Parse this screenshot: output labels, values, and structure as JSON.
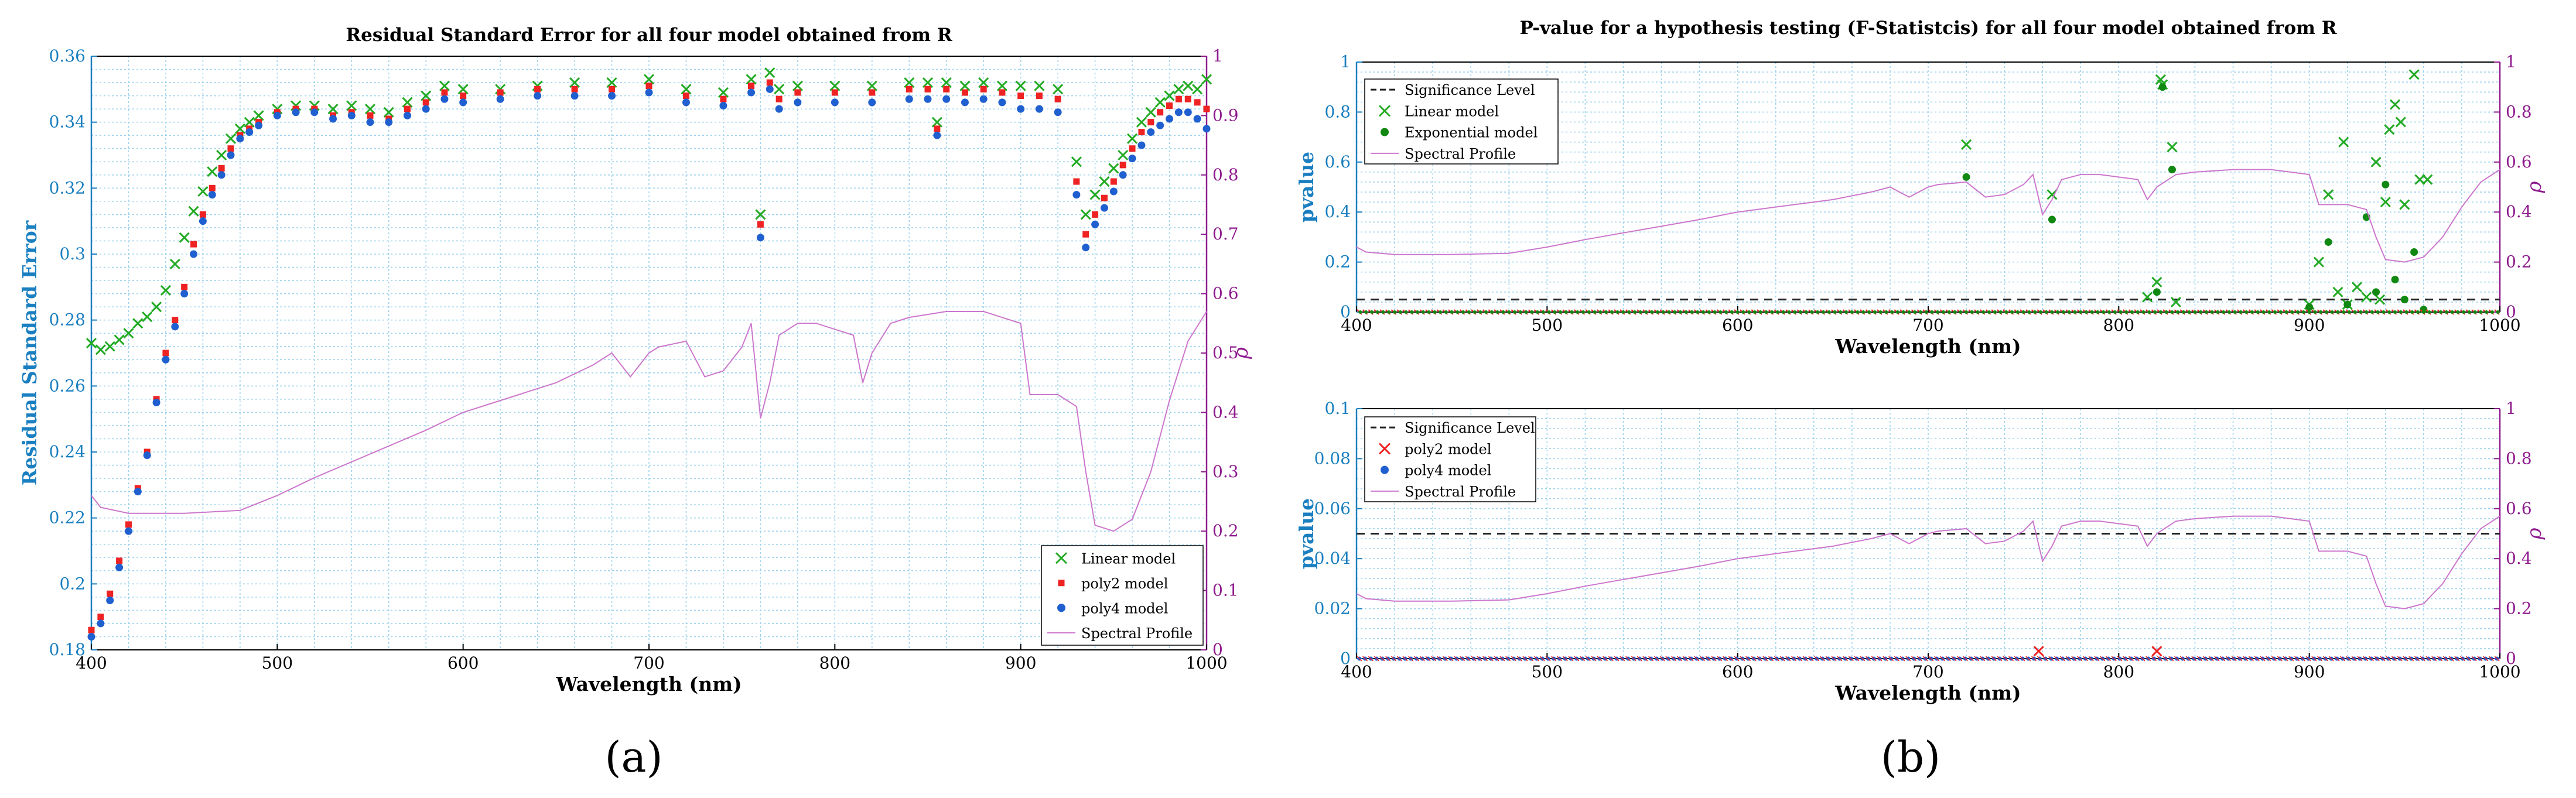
{
  "panel_labels": [
    "(a)",
    "(b)"
  ],
  "colors": {
    "linear": "#22aa22",
    "poly2": "#ee2222",
    "poly4": "#1f5fd0",
    "exponential": "#118811",
    "spectral": "#cc77cc",
    "significance": "#222222",
    "left_axis": "#1a7fc0",
    "right_axis": "#8e1a8e",
    "grid": "#9ed3ee"
  },
  "chart_data": [
    {
      "type": "scatter",
      "title": "Residual Standard Error for all four model obtained from R",
      "xlabel": "Wavelength (nm)",
      "ylabel": "Residual Standard Error",
      "ylabel_right": "ρ",
      "xlim": [
        400,
        1000
      ],
      "ylim": [
        0.18,
        0.36
      ],
      "ylim_right": [
        0,
        1
      ],
      "xticks": [
        400,
        500,
        600,
        700,
        800,
        900,
        1000
      ],
      "yticks": [
        0.18,
        0.2,
        0.22,
        0.24,
        0.26,
        0.28,
        0.3,
        0.32,
        0.34,
        0.36
      ],
      "yticks_right": [
        0,
        0.1,
        0.2,
        0.3,
        0.4,
        0.5,
        0.6,
        0.7,
        0.8,
        0.9,
        1
      ],
      "grid": true,
      "legend_position": "bottom-right",
      "series": [
        {
          "name": "Linear model",
          "marker": "x",
          "axis": "left",
          "x": [
            400,
            405,
            410,
            415,
            420,
            425,
            430,
            435,
            440,
            445,
            450,
            455,
            460,
            465,
            470,
            475,
            480,
            485,
            490,
            500,
            510,
            520,
            530,
            540,
            550,
            560,
            570,
            580,
            590,
            600,
            620,
            640,
            660,
            680,
            700,
            720,
            740,
            755,
            760,
            765,
            770,
            780,
            800,
            820,
            840,
            850,
            855,
            860,
            870,
            880,
            890,
            900,
            910,
            920,
            930,
            935,
            940,
            945,
            950,
            955,
            960,
            965,
            970,
            975,
            980,
            985,
            990,
            995,
            1000
          ],
          "y": [
            0.273,
            0.271,
            0.272,
            0.274,
            0.276,
            0.279,
            0.281,
            0.284,
            0.289,
            0.297,
            0.305,
            0.313,
            0.319,
            0.325,
            0.33,
            0.335,
            0.338,
            0.34,
            0.342,
            0.344,
            0.345,
            0.345,
            0.344,
            0.345,
            0.344,
            0.343,
            0.346,
            0.348,
            0.351,
            0.35,
            0.35,
            0.351,
            0.352,
            0.352,
            0.353,
            0.35,
            0.349,
            0.353,
            0.312,
            0.355,
            0.35,
            0.351,
            0.351,
            0.351,
            0.352,
            0.352,
            0.34,
            0.352,
            0.351,
            0.352,
            0.351,
            0.351,
            0.351,
            0.35,
            0.328,
            0.312,
            0.318,
            0.322,
            0.326,
            0.33,
            0.335,
            0.34,
            0.343,
            0.346,
            0.348,
            0.35,
            0.351,
            0.35,
            0.353
          ]
        },
        {
          "name": "poly2 model",
          "marker": "square",
          "axis": "left",
          "x": [
            400,
            405,
            410,
            415,
            420,
            425,
            430,
            435,
            440,
            445,
            450,
            455,
            460,
            465,
            470,
            475,
            480,
            485,
            490,
            500,
            510,
            520,
            530,
            540,
            550,
            560,
            570,
            580,
            590,
            600,
            620,
            640,
            660,
            680,
            700,
            720,
            740,
            755,
            760,
            765,
            770,
            780,
            800,
            820,
            840,
            850,
            855,
            860,
            870,
            880,
            890,
            900,
            910,
            920,
            930,
            935,
            940,
            945,
            950,
            955,
            960,
            965,
            970,
            975,
            980,
            985,
            990,
            995,
            1000
          ],
          "y": [
            0.186,
            0.19,
            0.197,
            0.207,
            0.218,
            0.229,
            0.24,
            0.256,
            0.27,
            0.28,
            0.29,
            0.303,
            0.312,
            0.32,
            0.326,
            0.332,
            0.336,
            0.338,
            0.34,
            0.343,
            0.344,
            0.344,
            0.342,
            0.343,
            0.342,
            0.341,
            0.344,
            0.346,
            0.349,
            0.348,
            0.349,
            0.35,
            0.35,
            0.35,
            0.351,
            0.348,
            0.347,
            0.351,
            0.309,
            0.352,
            0.347,
            0.349,
            0.349,
            0.349,
            0.35,
            0.35,
            0.338,
            0.35,
            0.349,
            0.35,
            0.349,
            0.348,
            0.348,
            0.347,
            0.322,
            0.306,
            0.312,
            0.317,
            0.322,
            0.327,
            0.332,
            0.337,
            0.34,
            0.343,
            0.345,
            0.347,
            0.347,
            0.346,
            0.344
          ]
        },
        {
          "name": "poly4 model",
          "marker": "dot",
          "axis": "left",
          "x": [
            400,
            405,
            410,
            415,
            420,
            425,
            430,
            435,
            440,
            445,
            450,
            455,
            460,
            465,
            470,
            475,
            480,
            485,
            490,
            500,
            510,
            520,
            530,
            540,
            550,
            560,
            570,
            580,
            590,
            600,
            620,
            640,
            660,
            680,
            700,
            720,
            740,
            755,
            760,
            765,
            770,
            780,
            800,
            820,
            840,
            850,
            855,
            860,
            870,
            880,
            890,
            900,
            910,
            920,
            930,
            935,
            940,
            945,
            950,
            955,
            960,
            965,
            970,
            975,
            980,
            985,
            990,
            995,
            1000
          ],
          "y": [
            0.184,
            0.188,
            0.195,
            0.205,
            0.216,
            0.228,
            0.239,
            0.255,
            0.268,
            0.278,
            0.288,
            0.3,
            0.31,
            0.318,
            0.324,
            0.33,
            0.335,
            0.337,
            0.339,
            0.342,
            0.343,
            0.343,
            0.341,
            0.342,
            0.34,
            0.34,
            0.342,
            0.344,
            0.347,
            0.346,
            0.347,
            0.348,
            0.348,
            0.348,
            0.349,
            0.346,
            0.345,
            0.349,
            0.305,
            0.35,
            0.344,
            0.346,
            0.346,
            0.346,
            0.347,
            0.347,
            0.336,
            0.347,
            0.346,
            0.347,
            0.346,
            0.344,
            0.344,
            0.343,
            0.318,
            0.302,
            0.309,
            0.314,
            0.319,
            0.324,
            0.329,
            0.333,
            0.337,
            0.339,
            0.341,
            0.343,
            0.343,
            0.341,
            0.338
          ]
        },
        {
          "name": "Spectral Profile",
          "marker": "line",
          "axis": "right",
          "x": [
            400,
            405,
            420,
            450,
            480,
            500,
            520,
            550,
            580,
            600,
            620,
            650,
            670,
            680,
            690,
            700,
            705,
            720,
            730,
            740,
            750,
            755,
            760,
            765,
            770,
            780,
            790,
            800,
            810,
            815,
            820,
            830,
            840,
            860,
            880,
            890,
            900,
            905,
            920,
            930,
            935,
            940,
            950,
            960,
            970,
            980,
            990,
            1000
          ],
          "y": [
            0.26,
            0.24,
            0.23,
            0.23,
            0.235,
            0.26,
            0.29,
            0.33,
            0.37,
            0.4,
            0.42,
            0.45,
            0.48,
            0.5,
            0.46,
            0.5,
            0.51,
            0.52,
            0.46,
            0.47,
            0.51,
            0.55,
            0.39,
            0.45,
            0.53,
            0.55,
            0.55,
            0.54,
            0.53,
            0.45,
            0.5,
            0.55,
            0.56,
            0.57,
            0.57,
            0.56,
            0.55,
            0.43,
            0.43,
            0.41,
            0.3,
            0.21,
            0.2,
            0.22,
            0.3,
            0.42,
            0.52,
            0.57
          ]
        }
      ]
    },
    {
      "type": "scatter",
      "title": "P-value for a hypothesis testing (F-Statistcis) for all four model obtained from R",
      "xlabel": "Wavelength (nm)",
      "ylabel": "pvalue",
      "ylabel_right": "ρ",
      "xlim": [
        400,
        1000
      ],
      "ylim": [
        0,
        1
      ],
      "ylim_right": [
        0,
        1
      ],
      "xticks": [
        400,
        500,
        600,
        700,
        800,
        900,
        1000
      ],
      "yticks": [
        0,
        0.2,
        0.4,
        0.6,
        0.8,
        1
      ],
      "yticks_right": [
        0,
        0.2,
        0.4,
        0.6,
        0.8,
        1
      ],
      "grid": true,
      "legend_position": "top-left",
      "series": [
        {
          "name": "Significance Level",
          "marker": "dashed",
          "axis": "left",
          "x": [
            400,
            1000
          ],
          "y": [
            0.05,
            0.05
          ]
        },
        {
          "name": "Linear model",
          "marker": "x",
          "axis": "left",
          "x": [
            720,
            765,
            815,
            820,
            822,
            823,
            828,
            830,
            900,
            905,
            910,
            915,
            918,
            920,
            925,
            930,
            935,
            937,
            940,
            942,
            945,
            948,
            950,
            955,
            958,
            962
          ],
          "y": [
            0.67,
            0.47,
            0.06,
            0.12,
            0.93,
            0.91,
            0.66,
            0.04,
            0.03,
            0.2,
            0.47,
            0.08,
            0.68,
            0.03,
            0.1,
            0.06,
            0.6,
            0.05,
            0.44,
            0.73,
            0.83,
            0.76,
            0.43,
            0.95,
            0.53,
            0.53
          ]
        },
        {
          "name": "Exponential model",
          "marker": "dot",
          "axis": "left",
          "x": [
            720,
            765,
            820,
            823,
            828,
            900,
            910,
            920,
            930,
            935,
            940,
            945,
            950,
            955,
            960
          ],
          "y": [
            0.54,
            0.37,
            0.08,
            0.9,
            0.57,
            0.02,
            0.28,
            0.03,
            0.38,
            0.08,
            0.51,
            0.13,
            0.05,
            0.24,
            0.01
          ]
        },
        {
          "name": "Spectral Profile",
          "marker": "line",
          "axis": "right",
          "x": [
            400,
            405,
            420,
            450,
            480,
            500,
            520,
            550,
            580,
            600,
            620,
            650,
            670,
            680,
            690,
            700,
            705,
            720,
            730,
            740,
            750,
            755,
            760,
            765,
            770,
            780,
            790,
            800,
            810,
            815,
            820,
            830,
            840,
            860,
            880,
            890,
            900,
            905,
            920,
            930,
            935,
            940,
            950,
            960,
            970,
            980,
            990,
            1000
          ],
          "y": [
            0.26,
            0.24,
            0.23,
            0.23,
            0.235,
            0.26,
            0.29,
            0.33,
            0.37,
            0.4,
            0.42,
            0.45,
            0.48,
            0.5,
            0.46,
            0.5,
            0.51,
            0.52,
            0.46,
            0.47,
            0.51,
            0.55,
            0.39,
            0.45,
            0.53,
            0.55,
            0.55,
            0.54,
            0.53,
            0.45,
            0.5,
            0.55,
            0.56,
            0.57,
            0.57,
            0.56,
            0.55,
            0.43,
            0.43,
            0.41,
            0.3,
            0.21,
            0.2,
            0.22,
            0.3,
            0.42,
            0.52,
            0.57
          ]
        }
      ]
    },
    {
      "type": "scatter",
      "title": "",
      "xlabel": "Wavelength (nm)",
      "ylabel": "pvalue",
      "ylabel_right": "ρ",
      "xlim": [
        400,
        1000
      ],
      "ylim": [
        0,
        0.1
      ],
      "ylim_right": [
        0,
        1
      ],
      "xticks": [
        400,
        500,
        600,
        700,
        800,
        900,
        1000
      ],
      "yticks": [
        0,
        0.02,
        0.04,
        0.06,
        0.08,
        0.1
      ],
      "yticks_right": [
        0,
        0.2,
        0.4,
        0.6,
        0.8,
        1
      ],
      "grid": true,
      "legend_position": "top-left",
      "series": [
        {
          "name": "Significance Level",
          "marker": "dashed",
          "axis": "left",
          "x": [
            400,
            1000
          ],
          "y": [
            0.05,
            0.05
          ]
        },
        {
          "name": "poly2 model",
          "marker": "x",
          "axis": "left",
          "x": [
            758,
            820
          ],
          "y": [
            0.003,
            0.003
          ]
        },
        {
          "name": "poly4 model",
          "marker": "dot",
          "axis": "left",
          "x": [],
          "y": []
        },
        {
          "name": "Spectral Profile",
          "marker": "line",
          "axis": "right",
          "x": [
            400,
            405,
            420,
            450,
            480,
            500,
            520,
            550,
            580,
            600,
            620,
            650,
            670,
            680,
            690,
            700,
            705,
            720,
            730,
            740,
            750,
            755,
            760,
            765,
            770,
            780,
            790,
            800,
            810,
            815,
            820,
            830,
            840,
            860,
            880,
            890,
            900,
            905,
            920,
            930,
            935,
            940,
            950,
            960,
            970,
            980,
            990,
            1000
          ],
          "y": [
            0.26,
            0.24,
            0.23,
            0.23,
            0.235,
            0.26,
            0.29,
            0.33,
            0.37,
            0.4,
            0.42,
            0.45,
            0.48,
            0.5,
            0.46,
            0.5,
            0.51,
            0.52,
            0.46,
            0.47,
            0.51,
            0.55,
            0.39,
            0.45,
            0.53,
            0.55,
            0.55,
            0.54,
            0.53,
            0.45,
            0.5,
            0.55,
            0.56,
            0.57,
            0.57,
            0.56,
            0.55,
            0.43,
            0.43,
            0.41,
            0.3,
            0.21,
            0.2,
            0.22,
            0.3,
            0.42,
            0.52,
            0.57
          ]
        }
      ]
    }
  ]
}
